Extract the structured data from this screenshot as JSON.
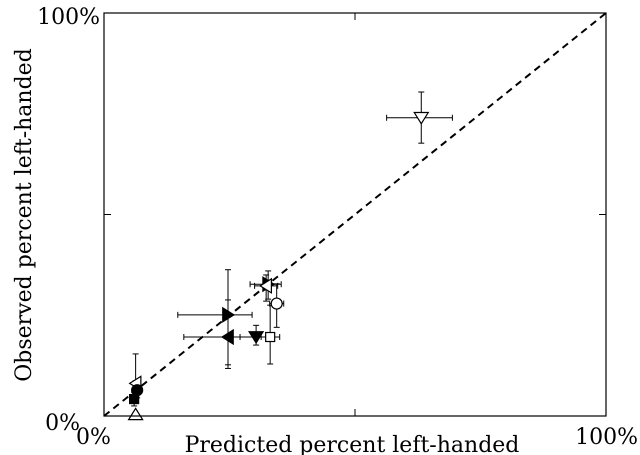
{
  "chart_data": {
    "type": "scatter",
    "title": "",
    "xlabel": "Predicted percent left-handed",
    "ylabel": "Observed percent left-handed",
    "xlim": [
      0,
      100
    ],
    "ylim": [
      0,
      100
    ],
    "grid": false,
    "x_tick_labels": [
      {
        "value": 0,
        "text": "0%"
      },
      {
        "value": 100,
        "text": "100%"
      }
    ],
    "y_tick_labels": [
      {
        "value": 0,
        "text": "0%"
      },
      {
        "value": 100,
        "text": "100%"
      }
    ],
    "minor_ticks": [
      50
    ],
    "reference_line": {
      "style": "dashed",
      "from": [
        0,
        0
      ],
      "to": [
        100,
        100
      ]
    },
    "points": [
      {
        "marker": "triangle-down",
        "fill": "white",
        "x": 63.2,
        "y": 74.0,
        "xerr": [
          56.3,
          69.4
        ],
        "yerr": [
          67.7,
          80.4
        ]
      },
      {
        "marker": "triangle-right",
        "fill": "black",
        "x": 32.7,
        "y": 32.7,
        "xerr": [
          29.1,
          35.3
        ],
        "yerr": [
          29.0,
          36.0
        ]
      },
      {
        "marker": "triangle-left",
        "fill": "white",
        "x": 32.3,
        "y": 32.3,
        "xerr": [
          30.0,
          34.6
        ],
        "yerr": [
          28.5,
          35.0
        ]
      },
      {
        "marker": "circle",
        "fill": "white",
        "x": 34.4,
        "y": 27.9,
        "xerr": [
          33.0,
          35.8
        ],
        "yerr": [
          22.0,
          32.8
        ]
      },
      {
        "marker": "triangle-right",
        "fill": "black",
        "x": 24.7,
        "y": 25.1,
        "xerr": [
          14.7,
          29.5
        ],
        "yerr": [
          12.7,
          36.3
        ]
      },
      {
        "marker": "triangle-left",
        "fill": "black",
        "x": 24.7,
        "y": 19.6,
        "xerr": [
          15.9,
          33.7
        ],
        "yerr": [
          11.8,
          28.8
        ]
      },
      {
        "marker": "triangle-down",
        "fill": "black",
        "x": 30.3,
        "y": 19.6,
        "xerr": [
          27.1,
          33.3
        ],
        "yerr": [
          17.6,
          22.5
        ]
      },
      {
        "marker": "square",
        "fill": "white",
        "x": 33.1,
        "y": 19.6,
        "xerr": [
          31.3,
          35.0
        ],
        "yerr": [
          12.9,
          27.5
        ]
      },
      {
        "marker": "triangle-left",
        "fill": "white",
        "x": 6.3,
        "y": 8.1,
        "xerr": [
          5.8,
          6.9
        ],
        "yerr": [
          3.3,
          15.4
        ]
      },
      {
        "marker": "circle",
        "fill": "black",
        "x": 6.6,
        "y": 6.4,
        "xerr": [
          6.3,
          6.9
        ],
        "yerr": [
          4.5,
          8.4
        ]
      },
      {
        "marker": "square",
        "fill": "black",
        "x": 6.0,
        "y": 4.2,
        "xerr": [
          5.8,
          6.3
        ],
        "yerr": [
          2.5,
          5.9
        ]
      },
      {
        "marker": "triangle-up",
        "fill": "white",
        "x": 6.3,
        "y": 0.4,
        "xerr": [
          6.3,
          6.3
        ],
        "yerr": [
          0.4,
          0.4
        ]
      }
    ]
  }
}
